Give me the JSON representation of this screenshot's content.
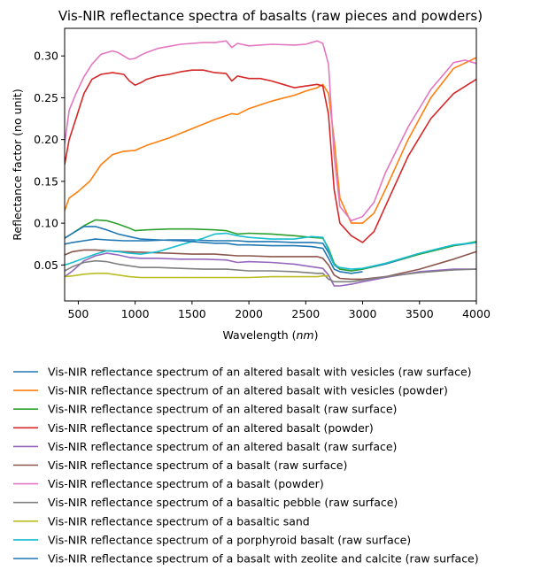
{
  "chart_data": {
    "type": "line",
    "title": "Vis-NIR reflectance spectra of basalts (raw pieces and powders)",
    "xlabel": "Wavelength (nm)",
    "xlabel_text": "Wavelength (",
    "xlabel_unit": "nm",
    "xlabel_close": ")",
    "ylabel": "Reflectance factor (no unit)",
    "xlim": [
      380,
      4000
    ],
    "ylim": [
      0.007,
      0.333
    ],
    "xticks": [
      500,
      1000,
      1500,
      2000,
      2500,
      3000,
      3500,
      4000
    ],
    "yticks": [
      0.05,
      0.1,
      0.15,
      0.2,
      0.25,
      0.3
    ],
    "grid": false,
    "legend_position": "below",
    "series": [
      {
        "name": "Vis-NIR reflectance spectrum of an altered basalt with vesicles (raw surface)",
        "color": "#1f77b4",
        "x": [
          380,
          450,
          550,
          650,
          750,
          900,
          1100,
          1300,
          1500,
          1700,
          1800,
          1900,
          2000,
          2200,
          2400,
          2550,
          2650,
          2700,
          2750,
          2800,
          2900,
          3000,
          3200,
          3500,
          3800,
          4000
        ],
        "y": [
          0.075,
          0.077,
          0.079,
          0.081,
          0.08,
          0.079,
          0.079,
          0.08,
          0.08,
          0.079,
          0.079,
          0.079,
          0.078,
          0.078,
          0.077,
          0.077,
          0.076,
          0.065,
          0.05,
          0.045,
          0.043,
          0.045,
          0.051,
          0.063,
          0.073,
          0.077
        ]
      },
      {
        "name": "Vis-NIR reflectance spectrum of an altered basalt with vesicles (powder)",
        "color": "#ff7f0e",
        "x": [
          380,
          420,
          500,
          600,
          700,
          800,
          900,
          1000,
          1100,
          1300,
          1500,
          1700,
          1850,
          1900,
          2000,
          2200,
          2400,
          2500,
          2600,
          2650,
          2700,
          2750,
          2800,
          2900,
          3000,
          3100,
          3200,
          3400,
          3600,
          3800,
          4000
        ],
        "y": [
          0.115,
          0.13,
          0.138,
          0.15,
          0.17,
          0.182,
          0.186,
          0.187,
          0.193,
          0.202,
          0.213,
          0.224,
          0.231,
          0.23,
          0.237,
          0.246,
          0.253,
          0.258,
          0.262,
          0.266,
          0.255,
          0.2,
          0.13,
          0.1,
          0.1,
          0.112,
          0.14,
          0.2,
          0.25,
          0.285,
          0.298
        ]
      },
      {
        "name": "Vis-NIR reflectance spectrum of an altered basalt (raw surface)",
        "color": "#2ca02c",
        "x": [
          380,
          450,
          550,
          650,
          750,
          850,
          950,
          1000,
          1100,
          1300,
          1500,
          1700,
          1800,
          1900,
          2000,
          2200,
          2400,
          2550,
          2650,
          2700,
          2750,
          2800,
          2900,
          3000,
          3200,
          3500,
          3800,
          4000
        ],
        "y": [
          0.082,
          0.088,
          0.097,
          0.104,
          0.103,
          0.099,
          0.094,
          0.091,
          0.092,
          0.093,
          0.093,
          0.092,
          0.091,
          0.087,
          0.088,
          0.087,
          0.085,
          0.083,
          0.082,
          0.07,
          0.052,
          0.045,
          0.043,
          0.045,
          0.052,
          0.063,
          0.073,
          0.078
        ]
      },
      {
        "name": "Vis-NIR reflectance spectrum of an altered basalt (powder)",
        "color": "#d62728",
        "x": [
          380,
          420,
          480,
          550,
          620,
          700,
          800,
          900,
          950,
          1000,
          1050,
          1100,
          1200,
          1300,
          1400,
          1500,
          1600,
          1700,
          1800,
          1850,
          1900,
          2000,
          2100,
          2200,
          2300,
          2400,
          2500,
          2600,
          2650,
          2700,
          2750,
          2800,
          2900,
          3000,
          3100,
          3200,
          3400,
          3600,
          3800,
          4000
        ],
        "y": [
          0.17,
          0.2,
          0.225,
          0.255,
          0.272,
          0.278,
          0.28,
          0.278,
          0.27,
          0.265,
          0.268,
          0.272,
          0.276,
          0.278,
          0.281,
          0.283,
          0.283,
          0.28,
          0.279,
          0.27,
          0.276,
          0.273,
          0.273,
          0.27,
          0.266,
          0.262,
          0.264,
          0.266,
          0.264,
          0.23,
          0.14,
          0.1,
          0.085,
          0.077,
          0.09,
          0.12,
          0.18,
          0.225,
          0.255,
          0.272
        ]
      },
      {
        "name": "Vis-NIR reflectance spectrum of an altered basalt (raw surface)",
        "color": "#9467bd",
        "x": [
          380,
          450,
          550,
          650,
          750,
          850,
          950,
          1050,
          1200,
          1400,
          1600,
          1800,
          1900,
          2000,
          2200,
          2400,
          2550,
          2650,
          2700,
          2750,
          2800,
          2900,
          3000,
          3200,
          3500,
          3800,
          4000
        ],
        "y": [
          0.036,
          0.043,
          0.055,
          0.061,
          0.064,
          0.062,
          0.059,
          0.058,
          0.058,
          0.057,
          0.057,
          0.056,
          0.053,
          0.054,
          0.053,
          0.051,
          0.048,
          0.046,
          0.038,
          0.025,
          0.025,
          0.027,
          0.03,
          0.035,
          0.042,
          0.045,
          0.045
        ]
      },
      {
        "name": "Vis-NIR reflectance spectrum of a basalt (raw surface)",
        "color": "#8c564b",
        "x": [
          380,
          450,
          550,
          650,
          750,
          900,
          1100,
          1300,
          1500,
          1700,
          1900,
          2000,
          2200,
          2400,
          2600,
          2650,
          2700,
          2750,
          2800,
          2900,
          3000,
          3200,
          3500,
          3800,
          4000
        ],
        "y": [
          0.062,
          0.066,
          0.068,
          0.068,
          0.067,
          0.066,
          0.065,
          0.064,
          0.063,
          0.063,
          0.061,
          0.061,
          0.06,
          0.06,
          0.06,
          0.058,
          0.05,
          0.038,
          0.034,
          0.033,
          0.033,
          0.036,
          0.045,
          0.057,
          0.066
        ]
      },
      {
        "name": "Vis-NIR reflectance spectrum of a basalt (powder)",
        "color": "#e377c2",
        "x": [
          380,
          420,
          480,
          550,
          620,
          700,
          800,
          850,
          900,
          950,
          1000,
          1050,
          1100,
          1200,
          1400,
          1600,
          1700,
          1800,
          1850,
          1900,
          2000,
          2200,
          2400,
          2500,
          2600,
          2650,
          2700,
          2750,
          2800,
          2900,
          3000,
          3100,
          3200,
          3400,
          3600,
          3800,
          3900,
          4000
        ],
        "y": [
          0.195,
          0.235,
          0.255,
          0.275,
          0.29,
          0.302,
          0.306,
          0.304,
          0.3,
          0.296,
          0.297,
          0.301,
          0.304,
          0.309,
          0.314,
          0.316,
          0.316,
          0.318,
          0.31,
          0.315,
          0.312,
          0.314,
          0.313,
          0.314,
          0.318,
          0.315,
          0.29,
          0.18,
          0.12,
          0.103,
          0.108,
          0.125,
          0.16,
          0.215,
          0.26,
          0.292,
          0.295,
          0.291
        ]
      },
      {
        "name": "Vis-NIR reflectance spectrum of a basaltic pebble (raw surface)",
        "color": "#7f7f7f",
        "x": [
          380,
          450,
          550,
          650,
          750,
          850,
          950,
          1050,
          1200,
          1400,
          1600,
          1800,
          2000,
          2200,
          2400,
          2600,
          2650,
          2700,
          2750,
          2800,
          2900,
          3000,
          3200,
          3500,
          3800,
          4000
        ],
        "y": [
          0.043,
          0.048,
          0.053,
          0.055,
          0.054,
          0.051,
          0.049,
          0.047,
          0.047,
          0.046,
          0.045,
          0.045,
          0.043,
          0.043,
          0.042,
          0.04,
          0.04,
          0.033,
          0.03,
          0.03,
          0.03,
          0.032,
          0.036,
          0.041,
          0.044,
          0.045
        ]
      },
      {
        "name": "Vis-NIR reflectance spectrum of a basaltic sand",
        "color": "#bcbd22",
        "x": [
          380,
          450,
          550,
          650,
          750,
          850,
          950,
          1050,
          1200,
          1400,
          1600,
          1800,
          2000,
          2200,
          2400,
          2600,
          2650,
          2700
        ],
        "y": [
          0.036,
          0.037,
          0.039,
          0.04,
          0.04,
          0.038,
          0.036,
          0.035,
          0.035,
          0.035,
          0.035,
          0.035,
          0.035,
          0.036,
          0.036,
          0.036,
          0.037,
          0.037
        ]
      },
      {
        "name": "Vis-NIR reflectance spectrum of a porphyroid basalt (raw surface)",
        "color": "#17becf",
        "x": [
          380,
          450,
          550,
          650,
          750,
          850,
          950,
          1050,
          1200,
          1400,
          1600,
          1700,
          1800,
          1900,
          2000,
          2200,
          2400,
          2550,
          2650,
          2700,
          2750,
          2800,
          2900,
          3000,
          3200,
          3500,
          3800,
          4000
        ],
        "y": [
          0.05,
          0.053,
          0.058,
          0.063,
          0.067,
          0.066,
          0.064,
          0.063,
          0.066,
          0.074,
          0.082,
          0.087,
          0.088,
          0.085,
          0.083,
          0.081,
          0.081,
          0.084,
          0.083,
          0.068,
          0.05,
          0.047,
          0.045,
          0.046,
          0.052,
          0.064,
          0.074,
          0.077
        ]
      },
      {
        "name": "Vis-NIR reflectance spectrum of a basalt with zeolite and calcite (raw surface)",
        "color": "#1f77b4",
        "x": [
          380,
          450,
          550,
          650,
          750,
          850,
          950,
          1050,
          1200,
          1400,
          1600,
          1700,
          1800,
          1900,
          2000,
          2200,
          2400,
          2550,
          2650,
          2700,
          2750,
          2800,
          2900,
          3000
        ],
        "y": [
          0.082,
          0.088,
          0.096,
          0.096,
          0.092,
          0.087,
          0.084,
          0.081,
          0.08,
          0.079,
          0.077,
          0.076,
          0.076,
          0.074,
          0.074,
          0.073,
          0.073,
          0.072,
          0.07,
          0.058,
          0.045,
          0.042,
          0.04,
          0.042
        ]
      }
    ]
  }
}
